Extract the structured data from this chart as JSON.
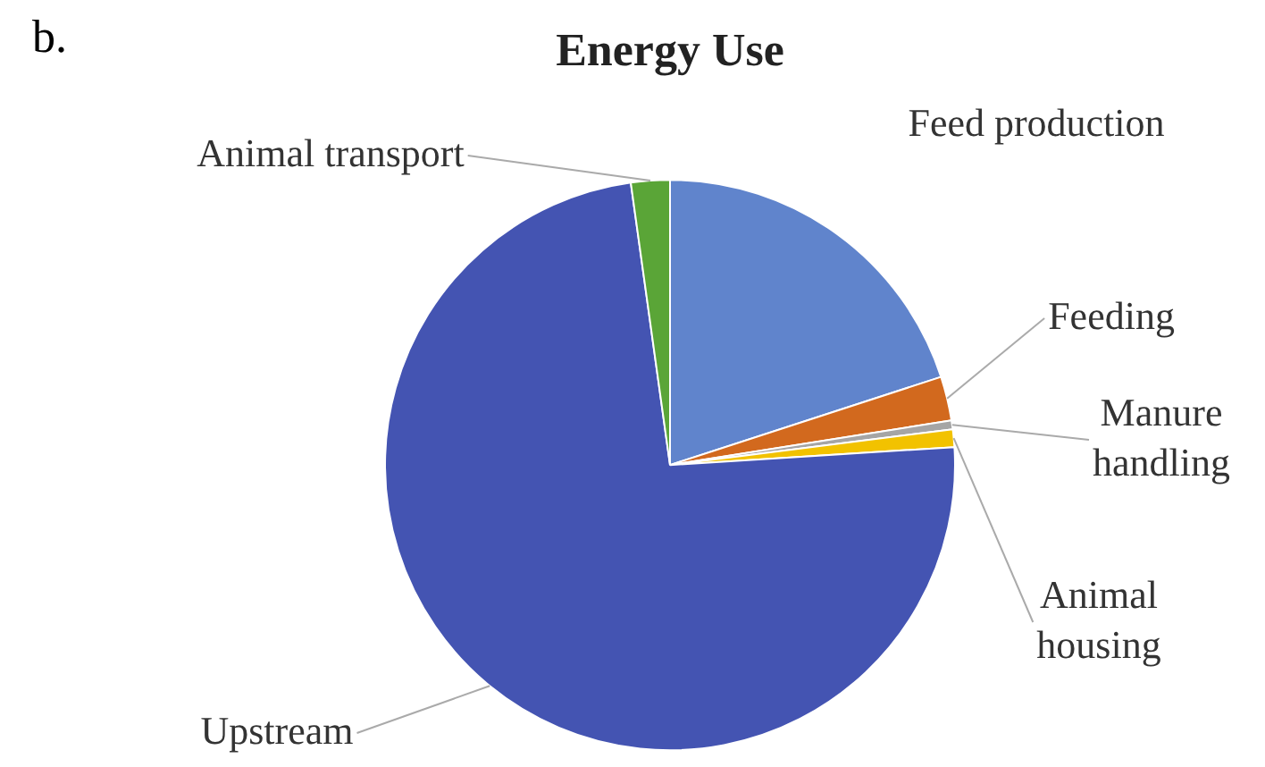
{
  "chart_data": {
    "type": "pie",
    "title": "Energy Use",
    "annotations": [
      "b."
    ],
    "categories": [
      "Feed production",
      "Feeding",
      "Manure handling",
      "Animal housing",
      "Upstream",
      "Animal transport"
    ],
    "values": [
      20,
      2.5,
      0.5,
      1,
      73.8,
      2.2
    ],
    "colors": [
      "#6084cc",
      "#d2691e",
      "#a5a5a5",
      "#f2c200",
      "#4454b2",
      "#5aa537"
    ],
    "legend": false
  }
}
